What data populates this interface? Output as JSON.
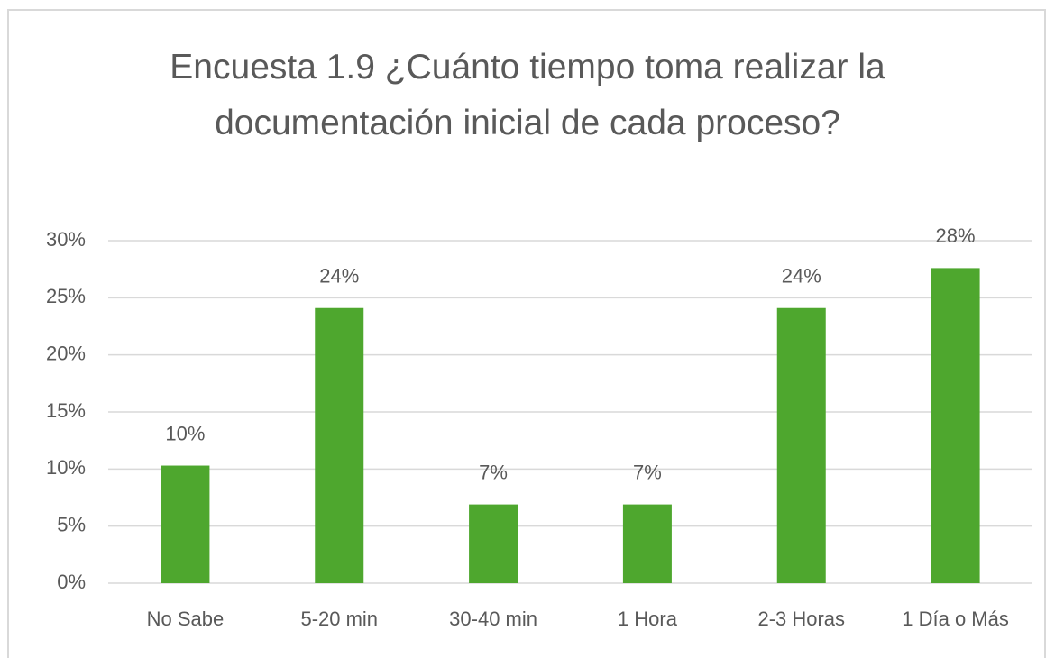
{
  "chart_data": {
    "type": "bar",
    "title": "Encuesta 1.9 ¿Cuánto tiempo toma realizar la documentación inicial de cada proceso?",
    "categories": [
      "No Sabe",
      "5-20 min",
      "30-40 min",
      "1 Hora",
      "2-3 Horas",
      "1 Día o Más"
    ],
    "values": [
      10.3,
      24.1,
      6.9,
      6.9,
      24.1,
      27.6
    ],
    "value_labels": [
      "10%",
      "24%",
      "7%",
      "7%",
      "24%",
      "28%"
    ],
    "color": "#4ea72e",
    "ylim": [
      0,
      30
    ],
    "yticks": [
      {
        "value": 0,
        "label": "0%"
      },
      {
        "value": 5,
        "label": "5%"
      },
      {
        "value": 10,
        "label": "10%"
      },
      {
        "value": 15,
        "label": "15%"
      },
      {
        "value": 20,
        "label": "20%"
      },
      {
        "value": 25,
        "label": "25%"
      },
      {
        "value": 30,
        "label": "30%"
      }
    ],
    "grid": true
  }
}
